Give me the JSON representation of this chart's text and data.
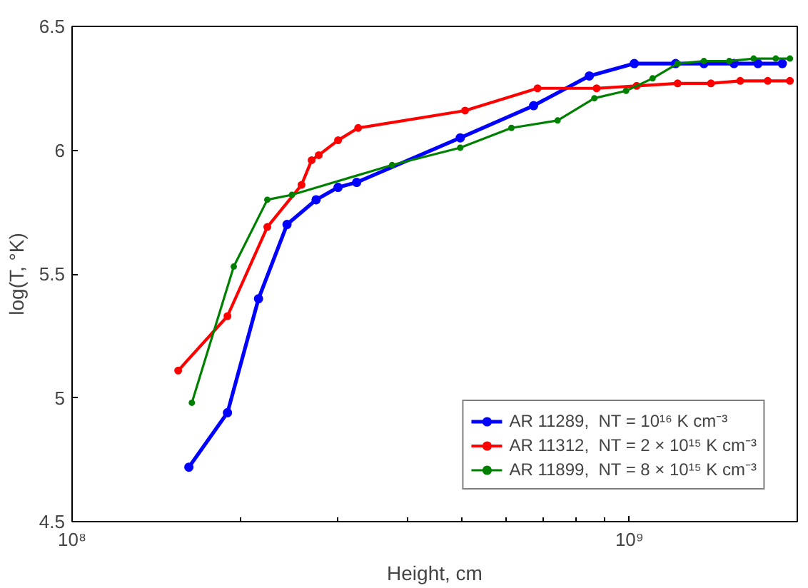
{
  "chart_data": {
    "type": "line",
    "xlabel": "Height, cm",
    "ylabel": "log(T, °K)",
    "log": "x",
    "grid": false,
    "legend": "bottom right",
    "marker": "circle",
    "line_style": "solid",
    "xlim": [
      100000000.0,
      2000000000.0
    ],
    "xticks": [
      {
        "value": 100000000.0,
        "label": "10⁸"
      },
      {
        "value": 1000000000.0,
        "label": "10⁹"
      }
    ],
    "ylim": [
      4.5,
      6.5
    ],
    "yticks": [
      4.5,
      5,
      5.5,
      6,
      6.5
    ],
    "series": [
      {
        "name": "AR 11289,  NT = 10¹⁶ K cm⁻³",
        "color": "#0000ff",
        "x": [
          162000000.0,
          190000000.0,
          216000000.0,
          243000000.0,
          274000000.0,
          300000000.0,
          324000000.0,
          497000000.0,
          673000000.0,
          847000000.0,
          1020000000.0,
          1210000000.0,
          1360000000.0,
          1540000000.0,
          1700000000.0,
          1880000000.0
        ],
        "values": [
          4.72,
          4.94,
          5.4,
          5.7,
          5.8,
          5.85,
          5.87,
          6.05,
          6.18,
          6.3,
          6.35,
          6.35,
          6.35,
          6.35,
          6.35,
          6.35
        ]
      },
      {
        "name": "AR 11312,  NT = 2 × 10¹⁵ K cm⁻³",
        "color": "#ff0000",
        "x": [
          155000000.0,
          190000000.0,
          224000000.0,
          258000000.0,
          269000000.0,
          277000000.0,
          300000000.0,
          326000000.0,
          507000000.0,
          684000000.0,
          873000000.0,
          1030000000.0,
          1220000000.0,
          1400000000.0,
          1580000000.0,
          1770000000.0,
          1940000000.0
        ],
        "values": [
          5.11,
          5.33,
          5.69,
          5.86,
          5.96,
          5.98,
          6.04,
          6.09,
          6.16,
          6.25,
          6.25,
          6.26,
          6.27,
          6.27,
          6.28,
          6.28,
          6.28
        ]
      },
      {
        "name": "AR 11899,  NT = 8 × 10¹⁵ K cm⁻³",
        "color": "#008000",
        "x": [
          164000000.0,
          195000000.0,
          224000000.0,
          248000000.0,
          375000000.0,
          497000000.0,
          614000000.0,
          743000000.0,
          865000000.0,
          986000000.0,
          1100000000.0,
          1220000000.0,
          1360000000.0,
          1510000000.0,
          1670000000.0,
          1830000000.0,
          1940000000.0
        ],
        "values": [
          4.98,
          5.53,
          5.8,
          5.82,
          5.94,
          6.01,
          6.09,
          6.12,
          6.21,
          6.24,
          6.29,
          6.35,
          6.36,
          6.36,
          6.37,
          6.37,
          6.37
        ]
      }
    ]
  }
}
